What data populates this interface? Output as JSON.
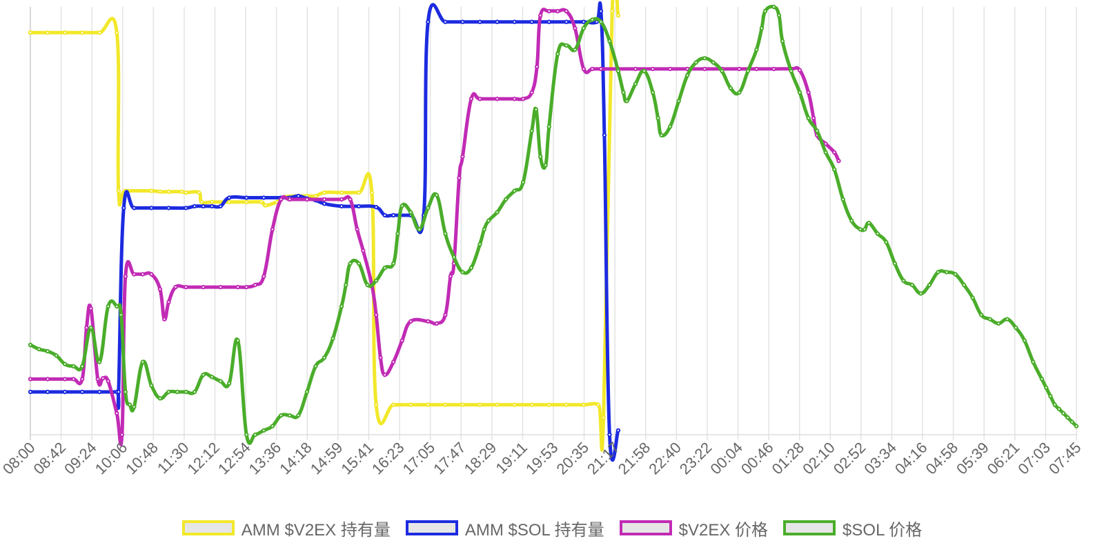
{
  "chart_data": {
    "type": "line",
    "title": "",
    "xlabel": "",
    "ylabel": "",
    "grid": "vertical",
    "legend_position": "bottom",
    "x": [
      "08:00",
      "08:42",
      "09:24",
      "10:06",
      "10:48",
      "11:30",
      "12:12",
      "12:54",
      "13:36",
      "14:18",
      "14:59",
      "15:41",
      "16:23",
      "17:05",
      "17:47",
      "18:29",
      "19:11",
      "19:53",
      "20:35",
      "21:17",
      "21:58",
      "22:40",
      "23:22",
      "00:04",
      "00:46",
      "01:28",
      "02:10",
      "02:52",
      "03:34",
      "04:16",
      "04:58",
      "05:39",
      "06:21",
      "07:03",
      "07:45"
    ],
    "series": [
      {
        "name": "AMM $V2EX 持有量",
        "color": "#f2e82a",
        "points": [
          [
            0,
            94
          ],
          [
            2,
            94
          ],
          [
            4,
            94
          ],
          [
            6,
            94
          ],
          [
            8,
            94
          ],
          [
            10,
            94
          ],
          [
            10.2,
            57
          ],
          [
            11,
            57
          ],
          [
            14,
            57
          ],
          [
            15,
            56.8
          ],
          [
            16,
            56.8
          ],
          [
            17.5,
            56.8
          ],
          [
            18,
            56.6
          ],
          [
            19.5,
            56.6
          ],
          [
            19.8,
            54.4
          ],
          [
            21,
            54.4
          ],
          [
            23,
            54.4
          ],
          [
            25,
            54.4
          ],
          [
            26.7,
            54.4
          ],
          [
            27.2,
            53.6
          ],
          [
            28.5,
            54.4
          ],
          [
            29.5,
            55.6
          ],
          [
            31,
            55.8
          ],
          [
            32,
            55.8
          ],
          [
            33,
            55.8
          ],
          [
            34,
            56.6
          ],
          [
            36,
            56.6
          ],
          [
            38,
            56.6
          ],
          [
            39.5,
            56.6
          ],
          [
            40,
            7
          ],
          [
            42,
            7
          ],
          [
            44,
            7
          ],
          [
            46,
            7
          ],
          [
            48,
            7
          ],
          [
            50,
            7
          ],
          [
            52,
            7
          ],
          [
            54,
            7
          ],
          [
            56,
            7
          ],
          [
            58,
            7
          ],
          [
            60,
            7
          ],
          [
            62,
            7
          ],
          [
            64,
            7
          ],
          [
            65.7,
            7
          ],
          [
            66.3,
            4
          ],
          [
            67.3,
            99
          ],
          [
            68,
            98
          ]
        ]
      },
      {
        "name": "AMM $SOL 持有量",
        "color": "#1c2be0",
        "points": [
          [
            0,
            10
          ],
          [
            2,
            10
          ],
          [
            4,
            10
          ],
          [
            6,
            10
          ],
          [
            8,
            10
          ],
          [
            10,
            10
          ],
          [
            10.2,
            10
          ],
          [
            10.8,
            53
          ],
          [
            12,
            53
          ],
          [
            14,
            53
          ],
          [
            16,
            53
          ],
          [
            18,
            53
          ],
          [
            19,
            53.4
          ],
          [
            20,
            53.4
          ],
          [
            21,
            53.4
          ],
          [
            22,
            53.4
          ],
          [
            23,
            55.4
          ],
          [
            25,
            55.4
          ],
          [
            27,
            55.4
          ],
          [
            29,
            55.4
          ],
          [
            30,
            55.4
          ],
          [
            31,
            55.8
          ],
          [
            32,
            55.2
          ],
          [
            33,
            54.8
          ],
          [
            34,
            54
          ],
          [
            36,
            53.4
          ],
          [
            38,
            53.4
          ],
          [
            40,
            53.2
          ],
          [
            41,
            51.3
          ],
          [
            42,
            51.3
          ],
          [
            44,
            51.3
          ],
          [
            45.5,
            51.3
          ],
          [
            46,
            96.5
          ],
          [
            48,
            96.5
          ],
          [
            50,
            96.5
          ],
          [
            52,
            96.5
          ],
          [
            54,
            96.5
          ],
          [
            56,
            96.5
          ],
          [
            58,
            96.5
          ],
          [
            60,
            96.5
          ],
          [
            62,
            96.5
          ],
          [
            64,
            96.5
          ],
          [
            65.5,
            96.5
          ],
          [
            66,
            99
          ],
          [
            66.4,
            70
          ],
          [
            67,
            0
          ],
          [
            68,
            1
          ]
        ]
      },
      {
        "name": "$V2EX 价格",
        "color": "#c12bb5",
        "points": [
          [
            0,
            13
          ],
          [
            2,
            13
          ],
          [
            4,
            13
          ],
          [
            5,
            13
          ],
          [
            6,
            13
          ],
          [
            6.5,
            25
          ],
          [
            7,
            29.5
          ],
          [
            7.8,
            13
          ],
          [
            8.4,
            13.2
          ],
          [
            9,
            12.5
          ],
          [
            10,
            5
          ],
          [
            10.6,
            0
          ],
          [
            11,
            37
          ],
          [
            12,
            37.5
          ],
          [
            13,
            37.5
          ],
          [
            14,
            37.5
          ],
          [
            15,
            34
          ],
          [
            15.5,
            27
          ],
          [
            16,
            31
          ],
          [
            16.8,
            34.5
          ],
          [
            18,
            34.5
          ],
          [
            20,
            34.5
          ],
          [
            22,
            34.5
          ],
          [
            24,
            34.5
          ],
          [
            25,
            34.5
          ],
          [
            26,
            35
          ],
          [
            27,
            37
          ],
          [
            28,
            48
          ],
          [
            29,
            55
          ],
          [
            30,
            55
          ],
          [
            32,
            55
          ],
          [
            34,
            55
          ],
          [
            36,
            55
          ],
          [
            37,
            55
          ],
          [
            37.8,
            48
          ],
          [
            38.5,
            43
          ],
          [
            39.5,
            35
          ],
          [
            40,
            28
          ],
          [
            40.5,
            18
          ],
          [
            41,
            14
          ],
          [
            42,
            17
          ],
          [
            43,
            22
          ],
          [
            44,
            26.5
          ],
          [
            46,
            26.5
          ],
          [
            47,
            26
          ],
          [
            48,
            28
          ],
          [
            48.6,
            37
          ],
          [
            49,
            40
          ],
          [
            49.6,
            60
          ],
          [
            50,
            65
          ],
          [
            51,
            78.5
          ],
          [
            52,
            78.5
          ],
          [
            54,
            78.5
          ],
          [
            56,
            78.5
          ],
          [
            57,
            78.5
          ],
          [
            58,
            80
          ],
          [
            58.6,
            86
          ],
          [
            59,
            98
          ],
          [
            60,
            99
          ],
          [
            61,
            99
          ],
          [
            62,
            99
          ],
          [
            63,
            95
          ],
          [
            64,
            85.5
          ],
          [
            65,
            85.5
          ],
          [
            66,
            85.5
          ],
          [
            68,
            85.5
          ],
          [
            70,
            85.5
          ],
          [
            72,
            85.5
          ],
          [
            74,
            85.5
          ],
          [
            76,
            85.5
          ],
          [
            78,
            85.5
          ],
          [
            80,
            85.5
          ],
          [
            82,
            85.5
          ],
          [
            84,
            85.5
          ],
          [
            86,
            85.5
          ],
          [
            88,
            85.5
          ],
          [
            89,
            85.2
          ],
          [
            90,
            80
          ],
          [
            90.6,
            74
          ],
          [
            91,
            70
          ],
          [
            92,
            68
          ],
          [
            93,
            66
          ],
          [
            93.5,
            64
          ]
        ]
      },
      {
        "name": "$SOL 价格",
        "color": "#4aad2a",
        "points": [
          [
            0,
            21
          ],
          [
            1,
            20
          ],
          [
            2,
            19.5
          ],
          [
            3,
            18.5
          ],
          [
            4,
            16.5
          ],
          [
            5,
            16
          ],
          [
            6,
            16
          ],
          [
            7,
            25
          ],
          [
            8,
            17
          ],
          [
            9,
            30
          ],
          [
            10,
            30
          ],
          [
            10.5,
            28
          ],
          [
            11,
            10
          ],
          [
            11.5,
            7
          ],
          [
            12,
            6.5
          ],
          [
            13,
            17
          ],
          [
            14,
            11.5
          ],
          [
            15,
            8.5
          ],
          [
            16,
            10
          ],
          [
            17,
            10
          ],
          [
            18,
            10
          ],
          [
            19,
            10
          ],
          [
            20,
            14
          ],
          [
            21,
            13.5
          ],
          [
            22,
            12.5
          ],
          [
            23,
            12
          ],
          [
            24,
            22
          ],
          [
            25,
            0
          ],
          [
            26,
            0
          ],
          [
            27,
            1
          ],
          [
            28,
            2
          ],
          [
            29,
            4.5
          ],
          [
            30,
            4.5
          ],
          [
            31,
            4.5
          ],
          [
            32,
            10
          ],
          [
            33,
            16
          ],
          [
            34,
            18
          ],
          [
            35,
            22.5
          ],
          [
            36,
            30
          ],
          [
            36.5,
            35
          ],
          [
            37,
            40
          ],
          [
            38,
            40
          ],
          [
            39,
            35
          ],
          [
            40,
            36
          ],
          [
            41,
            39
          ],
          [
            42,
            40
          ],
          [
            42.5,
            47
          ],
          [
            43,
            53.5
          ],
          [
            44,
            52
          ],
          [
            45,
            48
          ],
          [
            46,
            53
          ],
          [
            47,
            56
          ],
          [
            48,
            47
          ],
          [
            49,
            41.5
          ],
          [
            50,
            38
          ],
          [
            51,
            39
          ],
          [
            52,
            44.5
          ],
          [
            52.5,
            48
          ],
          [
            53,
            50
          ],
          [
            54,
            52
          ],
          [
            55,
            55
          ],
          [
            56,
            57
          ],
          [
            57,
            59
          ],
          [
            58,
            71
          ],
          [
            58.5,
            76
          ],
          [
            59,
            65
          ],
          [
            59.6,
            63
          ],
          [
            60,
            72
          ],
          [
            61,
            89
          ],
          [
            62,
            91
          ],
          [
            63,
            90
          ],
          [
            64,
            95
          ],
          [
            65,
            97
          ],
          [
            66,
            96.5
          ],
          [
            67,
            92
          ],
          [
            68,
            85
          ],
          [
            68.6,
            80
          ],
          [
            69,
            78
          ],
          [
            70,
            82
          ],
          [
            71,
            85
          ],
          [
            72,
            80
          ],
          [
            72.6,
            74
          ],
          [
            73,
            70
          ],
          [
            74,
            72
          ],
          [
            75,
            78
          ],
          [
            76,
            84
          ],
          [
            77,
            87
          ],
          [
            78,
            88
          ],
          [
            79,
            87
          ],
          [
            80,
            85
          ],
          [
            81,
            81
          ],
          [
            82,
            80
          ],
          [
            83,
            85
          ],
          [
            84,
            90
          ],
          [
            84.6,
            95
          ],
          [
            85,
            99
          ],
          [
            86,
            100
          ],
          [
            86.6,
            98
          ],
          [
            87,
            92
          ],
          [
            88,
            85
          ],
          [
            89,
            80
          ],
          [
            90,
            74
          ],
          [
            91,
            71
          ],
          [
            92,
            66
          ],
          [
            93,
            62
          ],
          [
            94,
            55
          ],
          [
            95,
            50
          ],
          [
            96,
            48
          ],
          [
            96.5,
            48
          ],
          [
            97,
            49.5
          ],
          [
            98,
            47
          ],
          [
            99,
            45
          ],
          [
            100,
            40
          ],
          [
            101,
            36
          ],
          [
            102,
            35
          ],
          [
            103,
            33
          ],
          [
            104,
            35
          ],
          [
            105,
            38
          ],
          [
            106,
            38
          ],
          [
            107,
            37.5
          ],
          [
            108,
            35
          ],
          [
            109,
            32
          ],
          [
            110,
            28
          ],
          [
            111,
            27
          ],
          [
            112,
            26
          ],
          [
            113,
            27
          ],
          [
            114,
            25
          ],
          [
            115,
            22
          ],
          [
            116,
            17
          ],
          [
            117,
            13
          ],
          [
            117.5,
            11
          ],
          [
            118,
            9
          ],
          [
            118.5,
            7
          ],
          [
            119,
            6
          ],
          [
            119.5,
            5
          ],
          [
            120,
            4
          ],
          [
            120.5,
            3
          ],
          [
            121,
            2
          ]
        ]
      }
    ]
  }
}
